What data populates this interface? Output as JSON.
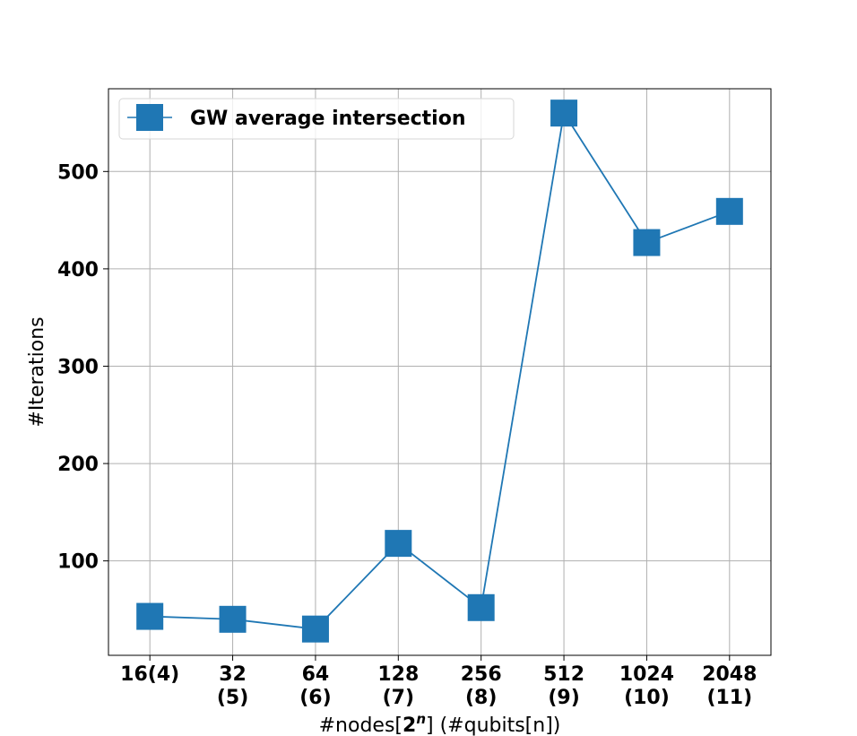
{
  "chart_data": {
    "type": "line",
    "categories": [
      "16(4)",
      "32\n(5)",
      "64\n(6)",
      "128\n(7)",
      "256\n(8)",
      "512\n(9)",
      "1024\n(10)",
      "2048\n(11)"
    ],
    "series": [
      {
        "name": "GW average intersection",
        "values": [
          43,
          40,
          30,
          118,
          52,
          560,
          427,
          459
        ]
      }
    ],
    "xlabel": {
      "prefix": "#nodes[",
      "base": "2",
      "sup": "n",
      "suffix": "] (#qubits[n])"
    },
    "ylabel": "#Iterations",
    "yticks": [
      100,
      200,
      300,
      400,
      500
    ],
    "ylim": [
      3,
      585
    ],
    "grid": true,
    "legend_position": "top-left",
    "colors": {
      "series": "#1f77b4",
      "grid": "#b0b0b0",
      "axis": "#000000"
    }
  }
}
